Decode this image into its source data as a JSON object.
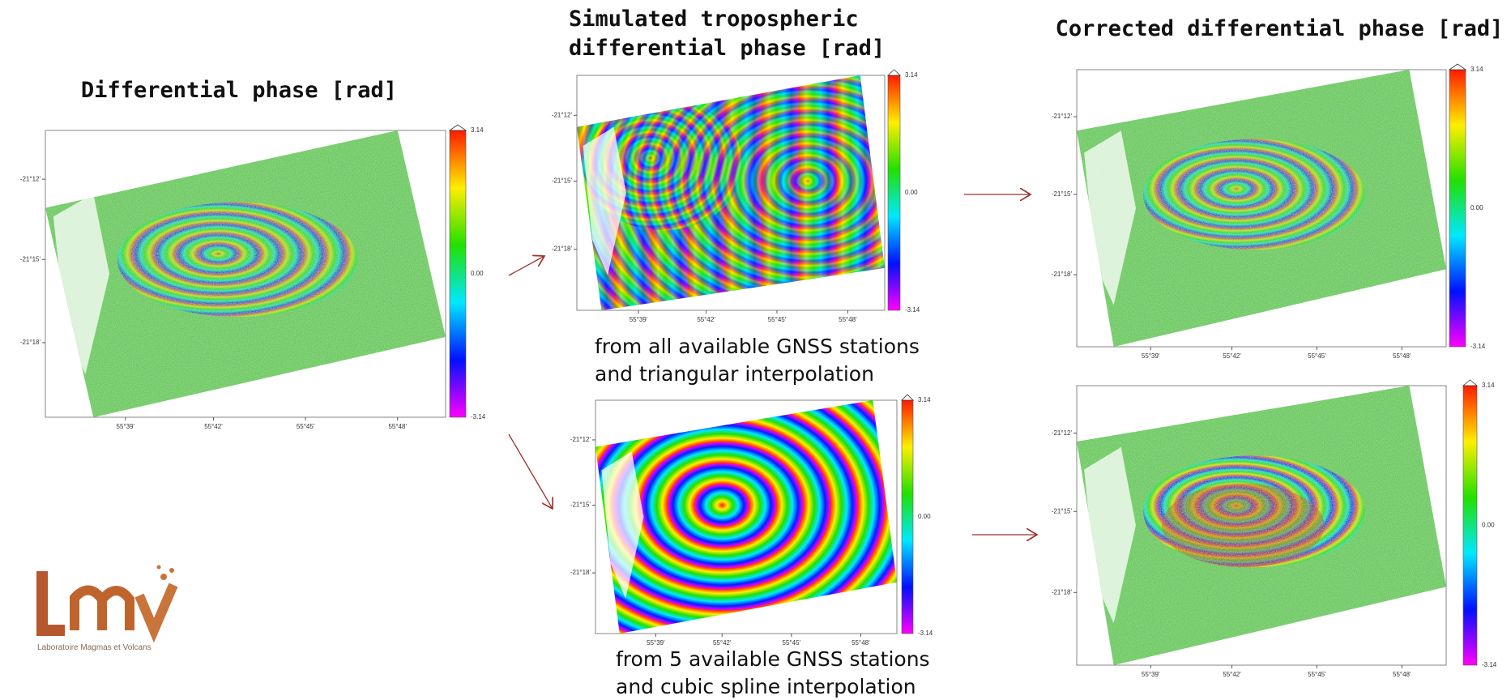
{
  "titles": {
    "input": "Differential phase [rad]",
    "simulated": [
      "Simulated tropospheric",
      "differential phase [rad]"
    ],
    "corrected": "Corrected differential phase [rad]"
  },
  "panels": [
    {
      "lat_labels": [
        "-21°12'",
        "-21°15'",
        "-21°18'"
      ],
      "lon_labels": [
        "55°39'",
        "55°42'",
        "55°45'",
        "55°48'"
      ],
      "colorbar_labels": [
        "3.14",
        "0.00",
        "-3.14"
      ]
    },
    {
      "lat_labels": [
        "-21°12'",
        "-21°15'",
        "-21°18'"
      ],
      "lon_labels": [
        "55°39'",
        "55°42'",
        "55°45'",
        "55°48'"
      ],
      "colorbar_labels": [
        "3.14",
        "0.00",
        "-3.14"
      ]
    },
    {
      "lat_labels": [
        "-21°12'",
        "-21°15'",
        "-21°18'"
      ],
      "lon_labels": [
        "55°39'",
        "55°42'",
        "55°45'",
        "55°48'"
      ],
      "colorbar_labels": [
        "3.14",
        "0.00",
        "-3.14"
      ]
    },
    {
      "lat_labels": [
        "-21°12'",
        "-21°15'",
        "-21°18'"
      ],
      "lon_labels": [
        "55°39'",
        "55°42'",
        "55°45'",
        "55°48'"
      ],
      "colorbar_labels": [
        "3.14",
        "0.00",
        "-3.14"
      ]
    },
    {
      "lat_labels": [
        "-21°12'",
        "-21°15'",
        "-21°18'"
      ],
      "lon_labels": [
        "55°39'",
        "55°42'",
        "55°45'",
        "55°48'"
      ],
      "colorbar_labels": [
        "3.14",
        "0.00",
        "-3.14"
      ]
    }
  ],
  "captions": [
    [
      "from all available GNSS stations",
      "and triangular interpolation"
    ],
    [
      "from 5 available GNSS stations",
      "and cubic spline interpolation"
    ]
  ],
  "logo": {
    "text": "Laboratoire Magmas et Volcans"
  }
}
